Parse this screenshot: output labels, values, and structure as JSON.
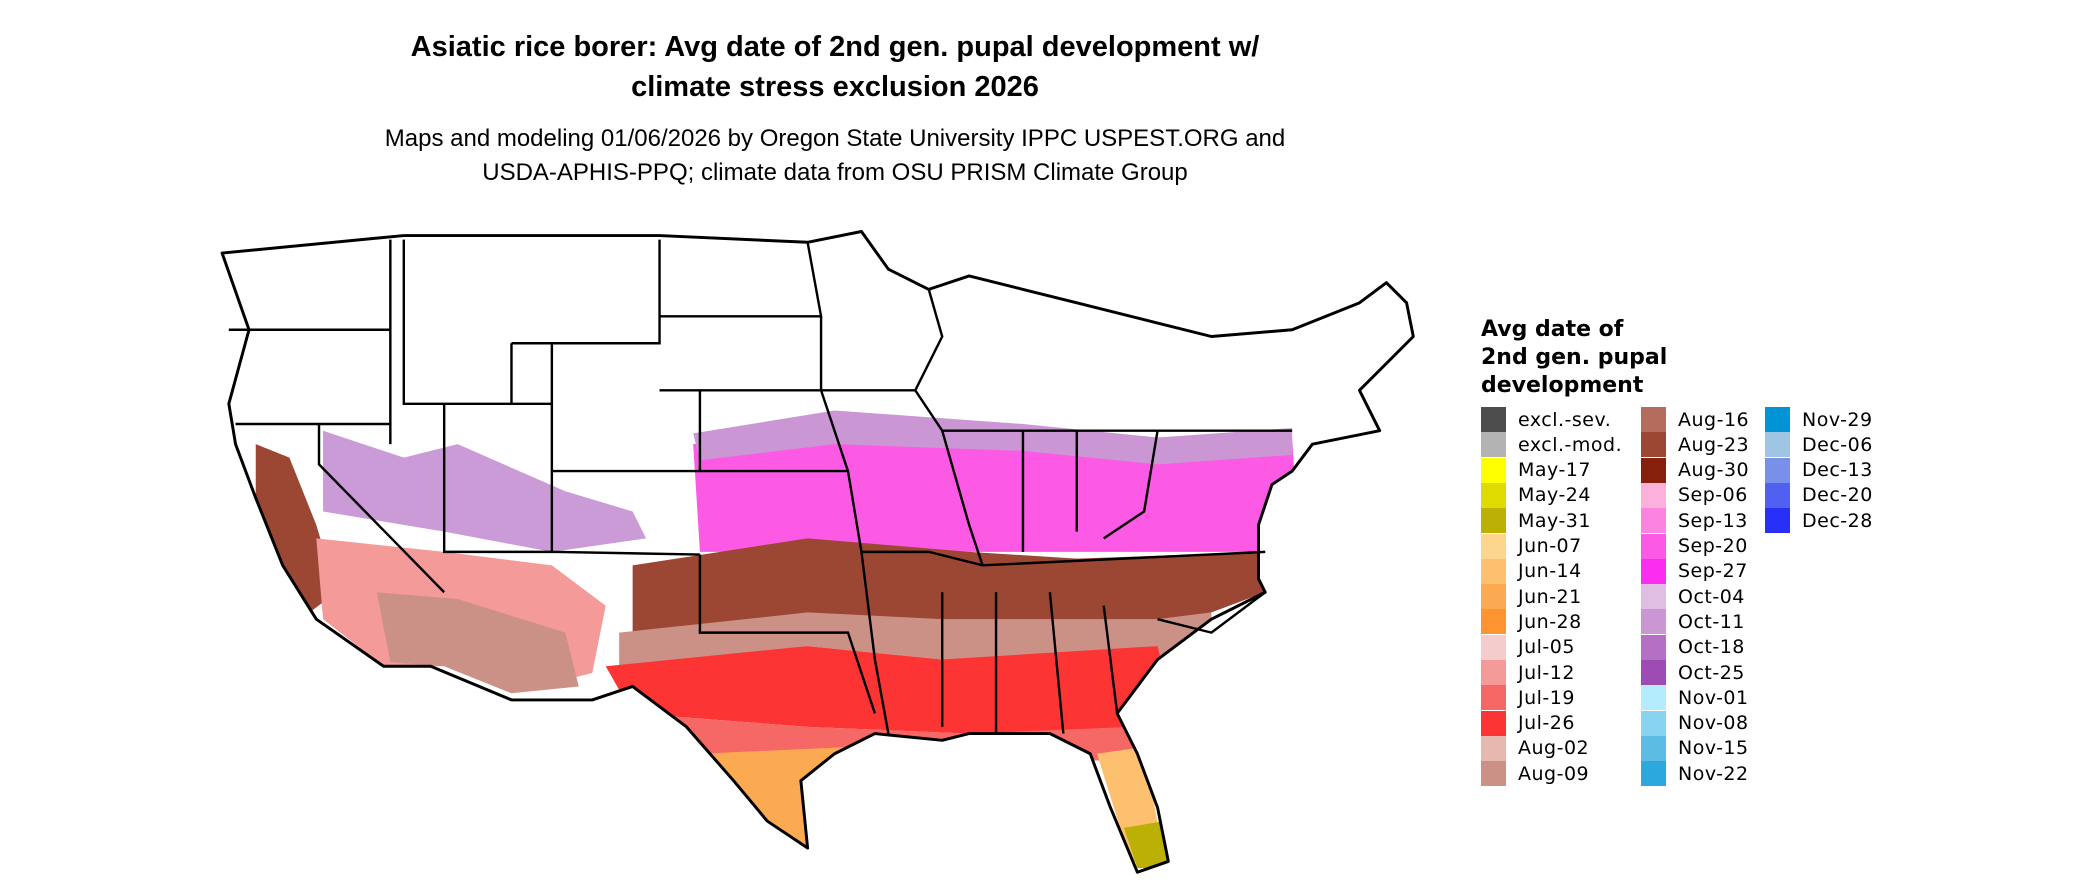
{
  "title": "Asiatic rice borer: Avg date of 2nd gen. pupal development w/ climate stress exclusion 2026",
  "title_lines": [
    "Asiatic rice borer: Avg date of 2nd gen. pupal development w/",
    "climate stress exclusion 2026"
  ],
  "subtitle_lines": [
    "Maps and modeling 01/06/2026 by Oregon State University IPPC USPEST.ORG and",
    "USDA-APHIS-PPQ; climate data from OSU PRISM Climate Group"
  ],
  "legend": {
    "title_lines": [
      "Avg date of",
      "2nd gen. pupal",
      "development"
    ],
    "items": [
      {
        "label": "excl.-sev.",
        "color": "#4d4d4d"
      },
      {
        "label": "excl.-mod.",
        "color": "#b3b3b3"
      },
      {
        "label": "May-17",
        "color": "#ffff00"
      },
      {
        "label": "May-24",
        "color": "#dfdb00"
      },
      {
        "label": "May-31",
        "color": "#bcb004"
      },
      {
        "label": "Jun-07",
        "color": "#fdd68e"
      },
      {
        "label": "Jun-14",
        "color": "#fdc06e"
      },
      {
        "label": "Jun-21",
        "color": "#fbaa52"
      },
      {
        "label": "Jun-28",
        "color": "#fc9432"
      },
      {
        "label": "Jul-05",
        "color": "#f4cccc"
      },
      {
        "label": "Jul-12",
        "color": "#f49a98"
      },
      {
        "label": "Jul-19",
        "color": "#f66866"
      },
      {
        "label": "Jul-26",
        "color": "#fc3434"
      },
      {
        "label": "Aug-02",
        "color": "#e6b8b0"
      },
      {
        "label": "Aug-09",
        "color": "#cc9186"
      },
      {
        "label": "Aug-16",
        "color": "#b46c5c"
      },
      {
        "label": "Aug-23",
        "color": "#9c4634"
      },
      {
        "label": "Aug-30",
        "color": "#84200c"
      },
      {
        "label": "Sep-06",
        "color": "#fcb0dc"
      },
      {
        "label": "Sep-13",
        "color": "#fc84e0"
      },
      {
        "label": "Sep-20",
        "color": "#fc5ae4"
      },
      {
        "label": "Sep-27",
        "color": "#fc2cf0"
      },
      {
        "label": "Oct-04",
        "color": "#e0bee4"
      },
      {
        "label": "Oct-11",
        "color": "#ca96d4"
      },
      {
        "label": "Oct-18",
        "color": "#b470c4"
      },
      {
        "label": "Oct-25",
        "color": "#9e4cb4"
      },
      {
        "label": "Nov-01",
        "color": "#b4ecfc"
      },
      {
        "label": "Nov-08",
        "color": "#88d4f0"
      },
      {
        "label": "Nov-15",
        "color": "#5cbce4"
      },
      {
        "label": "Nov-22",
        "color": "#2ca8dc"
      },
      {
        "label": "Nov-29",
        "color": "#0094d4"
      },
      {
        "label": "Dec-06",
        "color": "#a0c4e4"
      },
      {
        "label": "Dec-13",
        "color": "#7890e8"
      },
      {
        "label": "Dec-20",
        "color": "#5060f0"
      },
      {
        "label": "Dec-28",
        "color": "#2830f8"
      }
    ]
  }
}
